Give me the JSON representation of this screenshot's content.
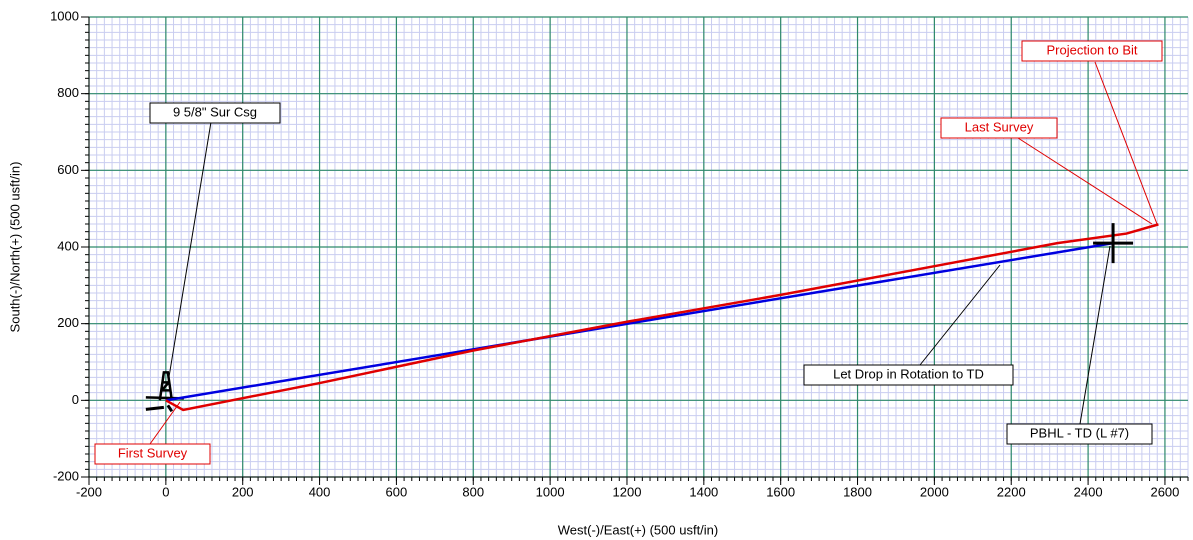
{
  "chart_data": {
    "type": "line",
    "xlabel": "West(-)/East(+) (500 usft/in)",
    "ylabel": "South(-)/North(+) (500 usft/in)",
    "xlim": [
      -200,
      2660
    ],
    "ylim": [
      -200,
      1000
    ],
    "xticks": [
      -200,
      0,
      200,
      400,
      600,
      800,
      1000,
      1200,
      1400,
      1600,
      1800,
      2000,
      2200,
      2400,
      2600
    ],
    "yticks": [
      -200,
      0,
      200,
      400,
      600,
      800,
      1000
    ],
    "grid": true,
    "minor_grid": true,
    "series": [
      {
        "color": "#0000e0",
        "x": [
          0,
          2465
        ],
        "values": [
          0,
          410
        ]
      },
      {
        "color": "#e00000",
        "x": [
          0,
          45,
          400,
          800,
          1200,
          1600,
          2000,
          2320,
          2500,
          2583
        ],
        "values": [
          0,
          -25,
          45,
          130,
          205,
          275,
          350,
          410,
          435,
          459
        ]
      }
    ],
    "annotations": [
      {
        "text": "9 5/8\" Sur Csg",
        "color": "#000000"
      },
      {
        "text": "Projection to Bit",
        "color": "#e00000"
      },
      {
        "text": "Last Survey",
        "color": "#e00000"
      },
      {
        "text": "First Survey",
        "color": "#e00000"
      },
      {
        "text": "Let Drop in Rotation to TD",
        "color": "#000000"
      },
      {
        "text": "PBHL - TD (L #7)",
        "color": "#000000"
      }
    ]
  }
}
